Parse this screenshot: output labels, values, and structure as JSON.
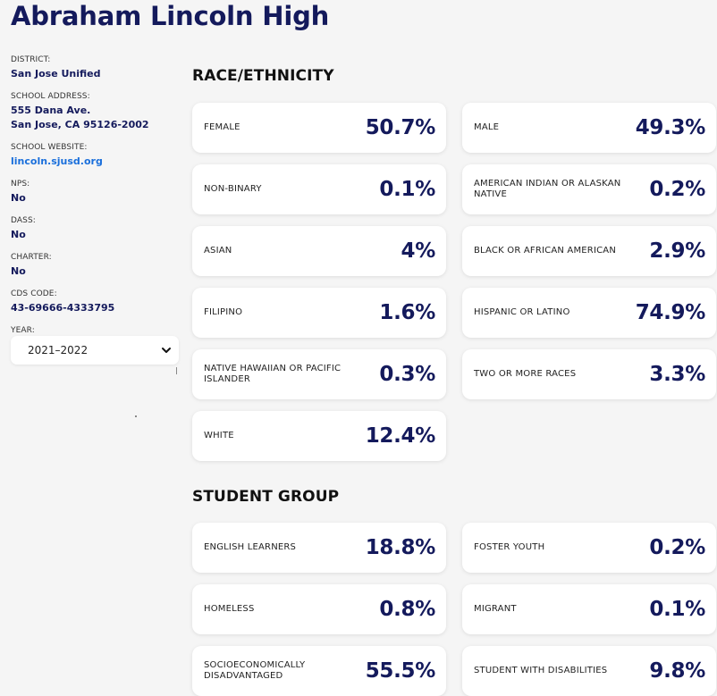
{
  "school": {
    "name": "Abraham Lincoln High"
  },
  "sidebar": {
    "district_label": "DISTRICT:",
    "district": "San Jose Unified",
    "address_label": "SCHOOL ADDRESS:",
    "address_line1": "555 Dana Ave.",
    "address_line2": "San Jose, CA 95126-2002",
    "website_label": "SCHOOL WEBSITE:",
    "website": "lincoln.sjusd.org",
    "nps_label": "NPS:",
    "nps": "No",
    "dass_label": "DASS:",
    "dass": "No",
    "charter_label": "CHARTER:",
    "charter": "No",
    "cds_label": "CDS CODE:",
    "cds": "43-69666-4333795",
    "year_label": "YEAR:",
    "year_selected": "2021–2022"
  },
  "race": {
    "title": "RACE/ETHNICITY",
    "items": [
      {
        "label": "FEMALE",
        "value": "50.7%"
      },
      {
        "label": "MALE",
        "value": "49.3%"
      },
      {
        "label": "NON-BINARY",
        "value": "0.1%"
      },
      {
        "label": "AMERICAN INDIAN OR ALASKAN NATIVE",
        "value": "0.2%"
      },
      {
        "label": "ASIAN",
        "value": "4%"
      },
      {
        "label": "BLACK OR AFRICAN AMERICAN",
        "value": "2.9%"
      },
      {
        "label": "FILIPINO",
        "value": "1.6%"
      },
      {
        "label": "HISPANIC OR LATINO",
        "value": "74.9%"
      },
      {
        "label": "NATIVE HAWAIIAN OR PACIFIC ISLANDER",
        "value": "0.3%"
      },
      {
        "label": "TWO OR MORE RACES",
        "value": "3.3%"
      },
      {
        "label": "WHITE",
        "value": "12.4%"
      }
    ]
  },
  "group": {
    "title": "STUDENT GROUP",
    "items": [
      {
        "label": "ENGLISH LEARNERS",
        "value": "18.8%"
      },
      {
        "label": "FOSTER YOUTH",
        "value": "0.2%"
      },
      {
        "label": "HOMELESS",
        "value": "0.8%"
      },
      {
        "label": "MIGRANT",
        "value": "0.1%"
      },
      {
        "label": "SOCIOECONOMICALLY DISADVANTAGED",
        "value": "55.5%"
      },
      {
        "label": "STUDENT WITH DISABILITIES",
        "value": "9.8%"
      }
    ]
  }
}
